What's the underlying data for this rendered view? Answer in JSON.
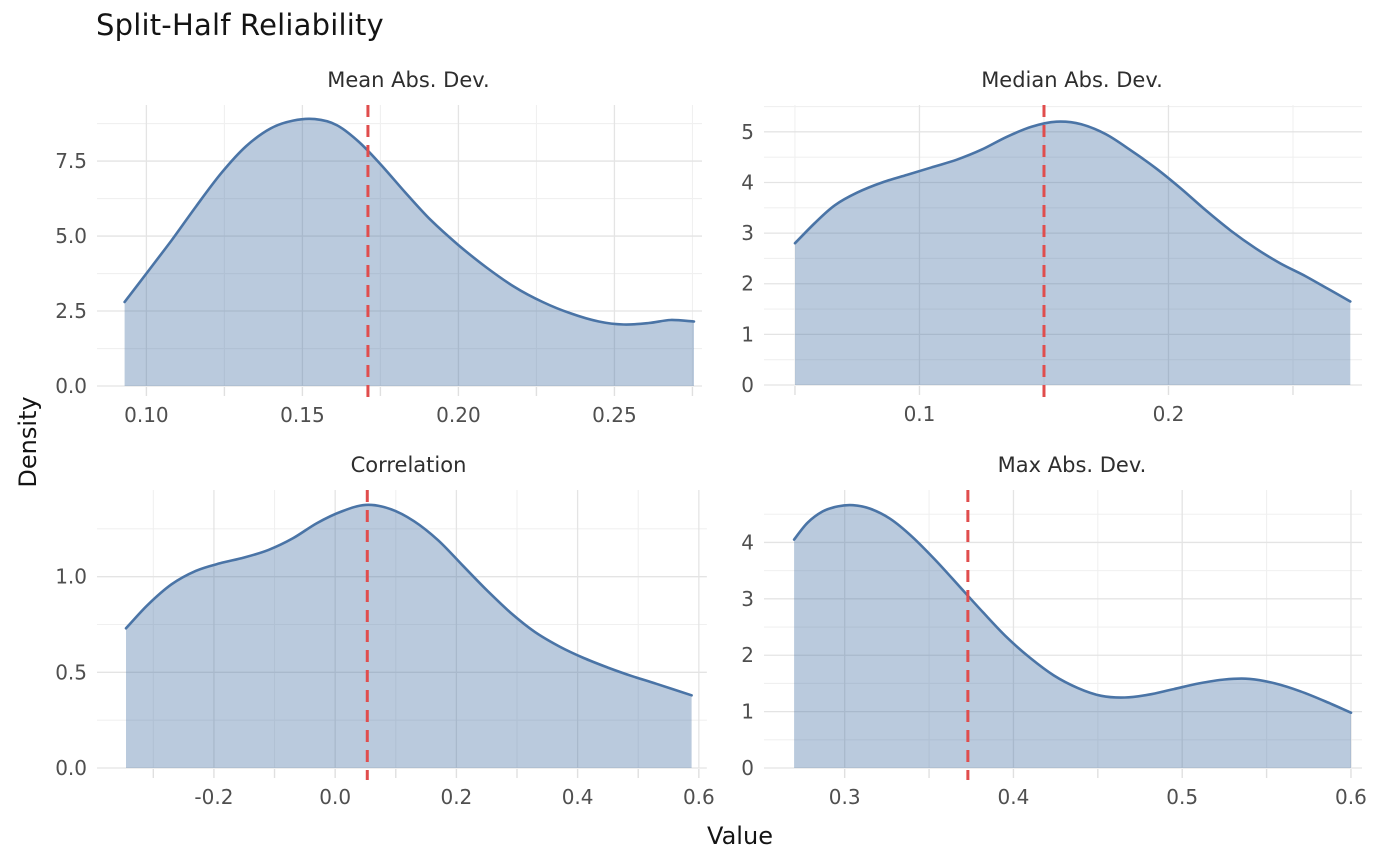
{
  "figure": {
    "title": "Split-Half Reliability",
    "x_axis_label": "Value",
    "y_axis_label": "Density"
  },
  "colors": {
    "background": "#ffffff",
    "curve_line": "#4a74a6",
    "curve_fill": "#4a74a6",
    "curve_fill_opacity": 0.38,
    "vline": "#e04d4d",
    "grid_major": "#e4e4e4",
    "grid_minor": "#f0f0f0",
    "tick_mark": "#e0e0e0",
    "tick_text": "#4f4f4f",
    "panel_title_text": "#2e2e2e",
    "figure_text": "#141414"
  },
  "chart_data": {
    "type": "area",
    "subtype": "kde-density-grid",
    "title": "Split-Half Reliability",
    "xlabel": "Value",
    "ylabel": "Density",
    "legend": null,
    "grid": "major+minor",
    "panels": [
      {
        "key": "mean-abs-dev",
        "title": "Mean Abs. Dev.",
        "xlim": [
          0.0925,
          0.2755
        ],
        "ylim": [
          0,
          9.37
        ],
        "vline": 0.171,
        "xticks": [
          {
            "v": 0.1,
            "label": "0.10"
          },
          {
            "v": 0.15,
            "label": "0.15"
          },
          {
            "v": 0.2,
            "label": "0.20"
          },
          {
            "v": 0.25,
            "label": "0.25"
          }
        ],
        "xminor": [
          0.125,
          0.175,
          0.225,
          0.275
        ],
        "yticks": [
          {
            "v": 0,
            "label": "0.0"
          },
          {
            "v": 2.5,
            "label": "2.5"
          },
          {
            "v": 5,
            "label": "5.0"
          },
          {
            "v": 7.5,
            "label": "7.5"
          }
        ],
        "yminor": [
          1.25,
          3.75,
          6.25,
          8.75
        ],
        "curve": {
          "x": [
            0.093,
            0.1,
            0.108,
            0.116,
            0.124,
            0.132,
            0.14,
            0.147,
            0.154,
            0.161,
            0.168,
            0.175,
            0.183,
            0.191,
            0.2,
            0.209,
            0.218,
            0.227,
            0.236,
            0.245,
            0.253,
            0.261,
            0.268,
            0.2755
          ],
          "y": [
            2.8,
            3.75,
            4.85,
            6.0,
            7.1,
            8.0,
            8.6,
            8.85,
            8.9,
            8.7,
            8.15,
            7.4,
            6.45,
            5.55,
            4.7,
            3.95,
            3.3,
            2.8,
            2.42,
            2.15,
            2.05,
            2.1,
            2.2,
            2.15
          ]
        }
      },
      {
        "key": "median-abs-dev",
        "title": "Median Abs. Dev.",
        "xlim": [
          0.048,
          0.2745
        ],
        "ylim": [
          0,
          5.53
        ],
        "vline": 0.15,
        "xticks": [
          {
            "v": 0.1,
            "label": "0.1"
          },
          {
            "v": 0.2,
            "label": "0.2"
          }
        ],
        "xminor": [
          0.05,
          0.15,
          0.25
        ],
        "yticks": [
          {
            "v": 0,
            "label": "0"
          },
          {
            "v": 1,
            "label": "1"
          },
          {
            "v": 2,
            "label": "2"
          },
          {
            "v": 3,
            "label": "3"
          },
          {
            "v": 4,
            "label": "4"
          },
          {
            "v": 5,
            "label": "5"
          }
        ],
        "yminor": [
          0.5,
          1.5,
          2.5,
          3.5,
          4.5,
          5.5
        ],
        "curve": {
          "x": [
            0.05,
            0.058,
            0.066,
            0.075,
            0.085,
            0.095,
            0.105,
            0.115,
            0.125,
            0.135,
            0.145,
            0.155,
            0.165,
            0.175,
            0.185,
            0.195,
            0.205,
            0.215,
            0.225,
            0.235,
            0.245,
            0.255,
            0.264,
            0.273
          ],
          "y": [
            2.8,
            3.2,
            3.55,
            3.8,
            4.0,
            4.15,
            4.3,
            4.45,
            4.65,
            4.9,
            5.1,
            5.2,
            5.15,
            4.95,
            4.63,
            4.28,
            3.88,
            3.45,
            3.05,
            2.7,
            2.4,
            2.15,
            1.9,
            1.65
          ]
        }
      },
      {
        "key": "correlation",
        "title": "Correlation",
        "xlim": [
          -0.35,
          0.592
        ],
        "ylim": [
          0,
          1.453
        ],
        "vline": 0.053,
        "xticks": [
          {
            "v": -0.2,
            "label": "-0.2"
          },
          {
            "v": 0.0,
            "label": "0.0"
          },
          {
            "v": 0.2,
            "label": "0.2"
          },
          {
            "v": 0.4,
            "label": "0.4"
          },
          {
            "v": 0.6,
            "label": "0.6"
          }
        ],
        "xminor": [
          -0.3,
          -0.1,
          0.1,
          0.3,
          0.5
        ],
        "yticks": [
          {
            "v": 0,
            "label": "0.0"
          },
          {
            "v": 0.5,
            "label": "0.5"
          },
          {
            "v": 1.0,
            "label": "1.0"
          }
        ],
        "yminor": [
          0.25,
          0.75,
          1.25
        ],
        "curve": {
          "x": [
            -0.345,
            -0.31,
            -0.27,
            -0.23,
            -0.19,
            -0.15,
            -0.11,
            -0.07,
            -0.03,
            0.01,
            0.05,
            0.09,
            0.13,
            0.17,
            0.21,
            0.25,
            0.29,
            0.33,
            0.37,
            0.41,
            0.45,
            0.49,
            0.53,
            0.588
          ],
          "y": [
            0.73,
            0.85,
            0.96,
            1.03,
            1.07,
            1.1,
            1.14,
            1.2,
            1.28,
            1.34,
            1.375,
            1.355,
            1.29,
            1.19,
            1.06,
            0.93,
            0.81,
            0.71,
            0.635,
            0.575,
            0.525,
            0.48,
            0.44,
            0.38
          ]
        }
      },
      {
        "key": "max-abs-dev",
        "title": "Max Abs. Dev.",
        "xlim": [
          0.2676,
          0.6018
        ],
        "ylim": [
          0,
          4.93
        ],
        "vline": 0.373,
        "xticks": [
          {
            "v": 0.3,
            "label": "0.3"
          },
          {
            "v": 0.4,
            "label": "0.4"
          },
          {
            "v": 0.5,
            "label": "0.5"
          },
          {
            "v": 0.6,
            "label": "0.6"
          }
        ],
        "xminor": [
          0.35,
          0.45,
          0.55
        ],
        "yticks": [
          {
            "v": 0,
            "label": "0"
          },
          {
            "v": 1,
            "label": "1"
          },
          {
            "v": 2,
            "label": "2"
          },
          {
            "v": 3,
            "label": "3"
          },
          {
            "v": 4,
            "label": "4"
          }
        ],
        "yminor": [
          0.5,
          1.5,
          2.5,
          3.5,
          4.5
        ],
        "curve": {
          "x": [
            0.27,
            0.278,
            0.287,
            0.296,
            0.305,
            0.315,
            0.327,
            0.34,
            0.354,
            0.368,
            0.382,
            0.396,
            0.41,
            0.424,
            0.438,
            0.452,
            0.466,
            0.48,
            0.495,
            0.51,
            0.525,
            0.54,
            0.555,
            0.57,
            0.585,
            0.6
          ],
          "y": [
            4.05,
            4.35,
            4.55,
            4.64,
            4.66,
            4.6,
            4.42,
            4.1,
            3.68,
            3.22,
            2.76,
            2.32,
            1.95,
            1.64,
            1.42,
            1.28,
            1.25,
            1.3,
            1.4,
            1.5,
            1.57,
            1.58,
            1.5,
            1.36,
            1.18,
            0.98
          ]
        }
      }
    ]
  }
}
